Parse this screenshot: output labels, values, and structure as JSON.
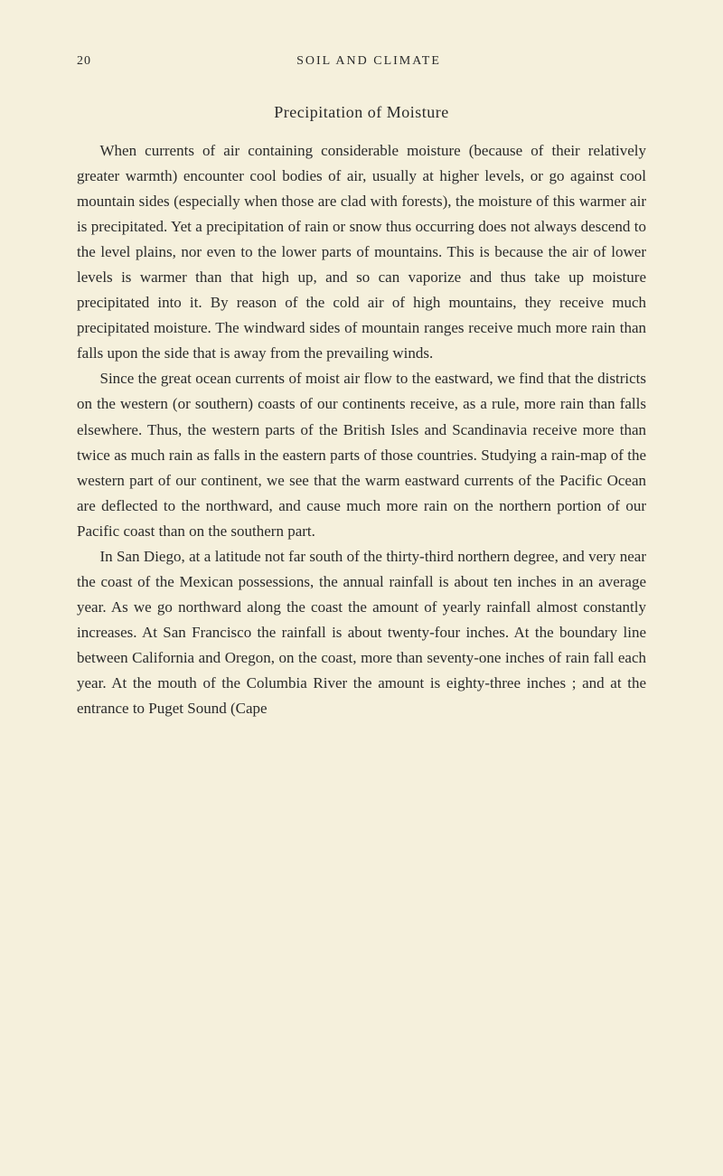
{
  "page": {
    "number": "20",
    "running_head": "SOIL AND CLIMATE",
    "section_title": "Precipitation of Moisture",
    "paragraphs": [
      "When currents of air containing considerable moisture (because of their relatively greater warmth) encounter cool bodies of air, usually at higher levels, or go against cool mountain sides (especially when those are clad with forests), the moisture of this warmer air is precipitated. Yet a precipitation of rain or snow thus occurring does not always descend to the level plains, nor even to the lower parts of mountains. This is because the air of lower levels is warmer than that high up, and so can vaporize and thus take up moisture precipitated into it. By reason of the cold air of high mountains, they receive much precipitated moisture. The windward sides of mountain ranges receive much more rain than falls upon the side that is away from the prevailing winds.",
      "Since the great ocean currents of moist air flow to the eastward, we find that the districts on the western (or southern) coasts of our continents receive, as a rule, more rain than falls elsewhere. Thus, the western parts of the British Isles and Scandinavia receive more than twice as much rain as falls in the eastern parts of those countries. Studying a rain-map of the western part of our continent, we see that the warm eastward currents of the Pacific Ocean are deflected to the northward, and cause much more rain on the northern portion of our Pacific coast than on the southern part.",
      "In San Diego, at a latitude not far south of the thirty-third northern degree, and very near the coast of the Mexican possessions, the annual rainfall is about ten inches in an average year. As we go northward along the coast the amount of yearly rainfall almost constantly increases. At San Francisco the rainfall is about twenty-four inches. At the boundary line between California and Oregon, on the coast, more than seventy-one inches of rain fall each year. At the mouth of the Columbia River the amount is eighty-three inches ; and at the entrance to Puget Sound (Cape"
    ]
  },
  "styles": {
    "background_color": "#f5f0dc",
    "text_color": "#2a2a2a",
    "body_font_size": 17,
    "line_height": 1.65,
    "header_font_size": 14,
    "title_font_size": 18
  }
}
